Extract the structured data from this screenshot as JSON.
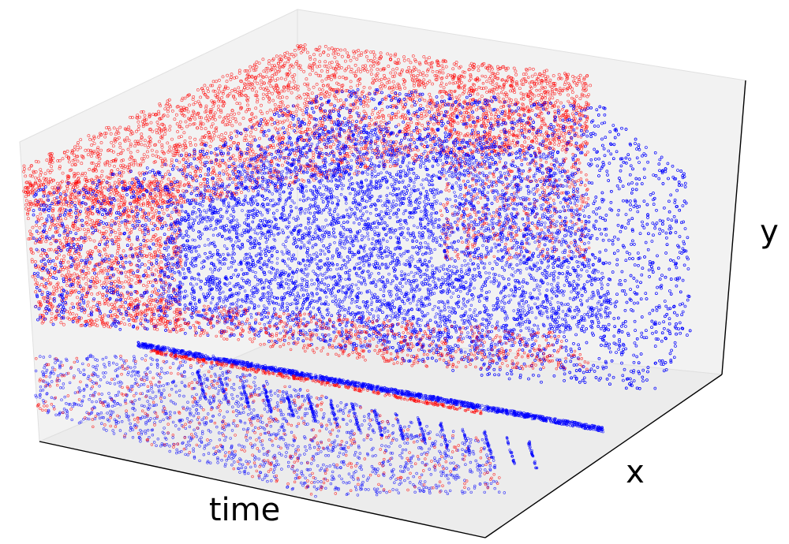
{
  "chart_data": {
    "type": "scatter",
    "projection": "3d",
    "title": "",
    "xlabel": "time",
    "ylabel": "x",
    "zlabel": "y",
    "ticks_shown": false,
    "grid": false,
    "legend": "none",
    "series": [
      {
        "color": "#ff0000",
        "marker": "open-circle"
      },
      {
        "color": "#0000ff",
        "marker": "open-circle"
      }
    ],
    "pane_color": "#f2f2f2"
  }
}
